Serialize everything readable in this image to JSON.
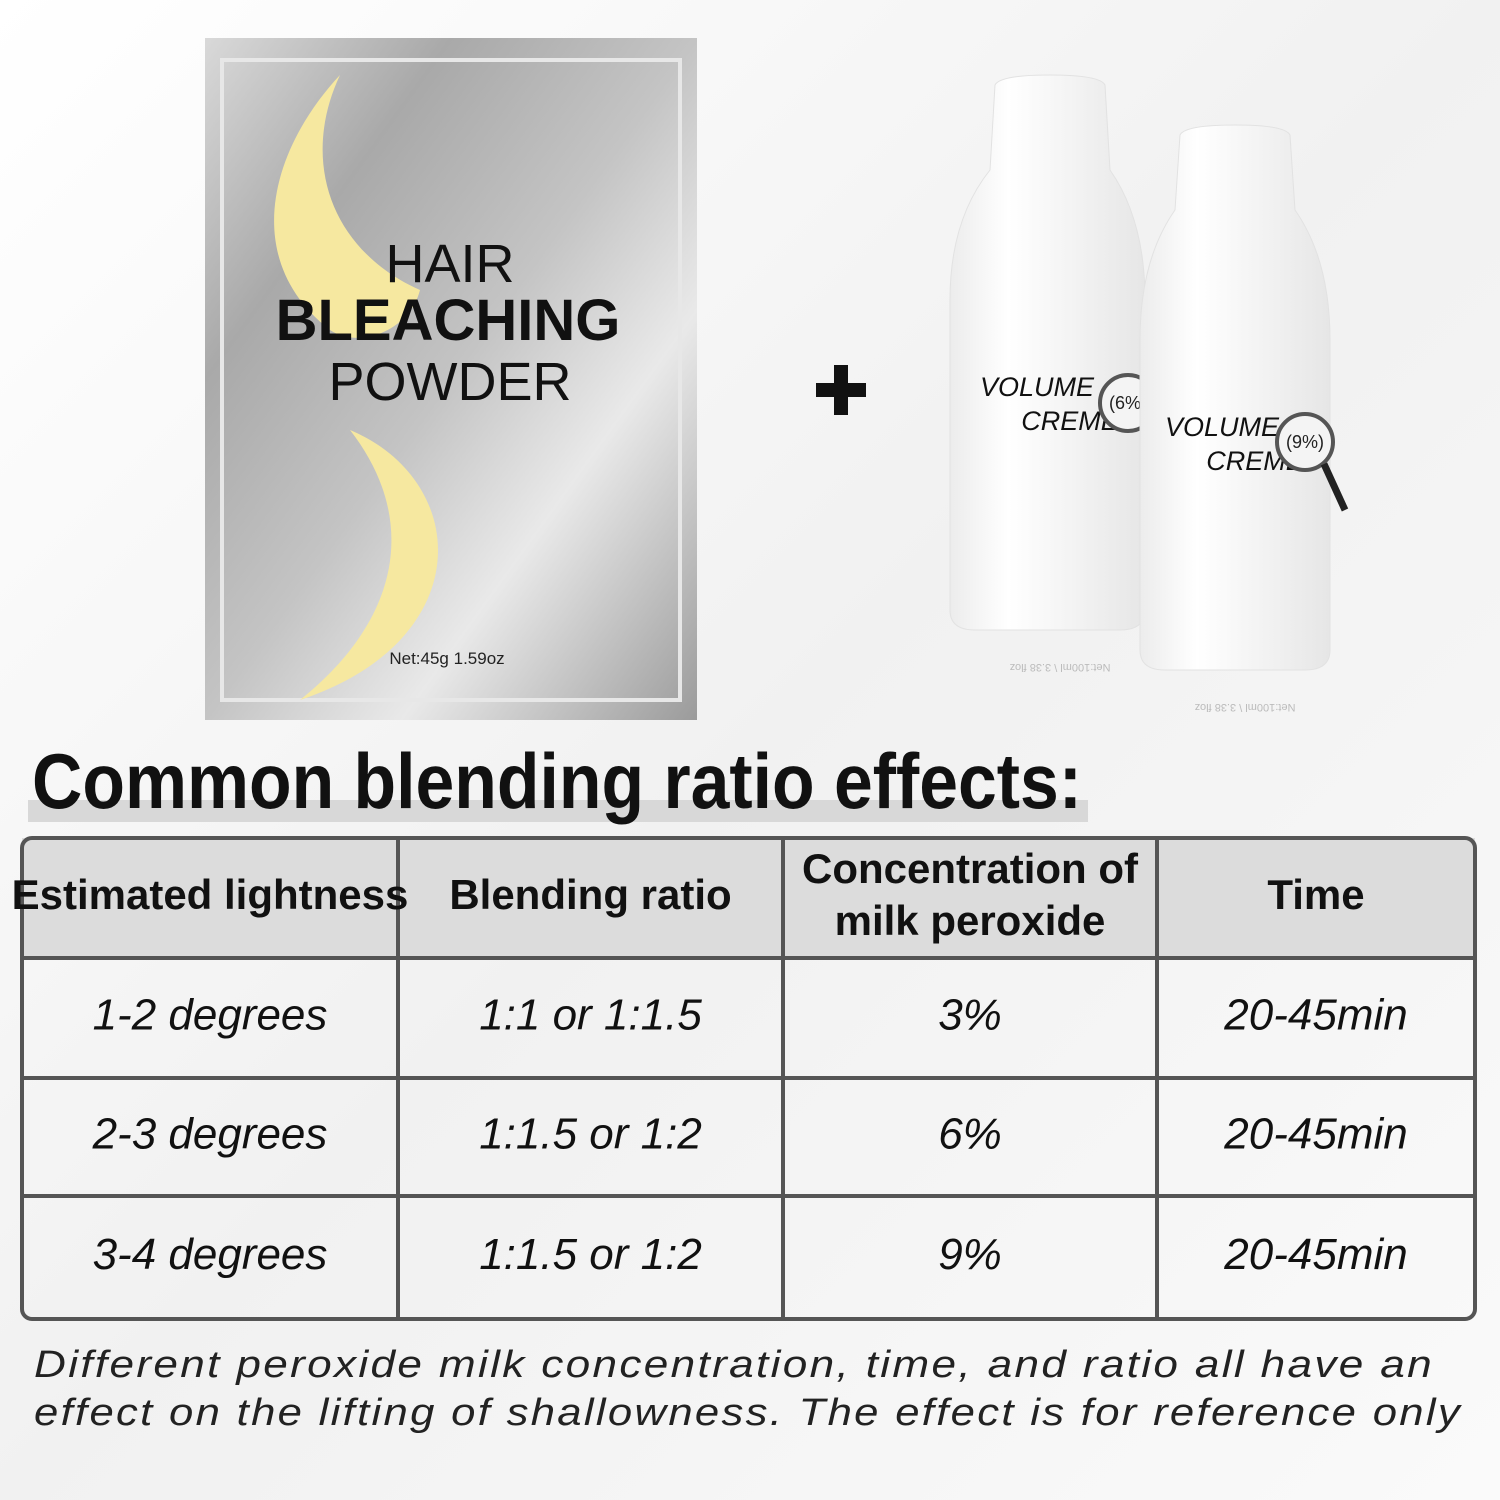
{
  "packet": {
    "line1": "HAIR",
    "line2": "BLEACHING",
    "line3": "POWDER",
    "net": "Net:45g 1.59oz"
  },
  "bottles": [
    {
      "line1": "VOLUME",
      "line2": "CREME",
      "badge": "(6%)",
      "net": "Net:100ml \\ 3.38 floz"
    },
    {
      "line1": "VOLUME",
      "line2": "CREME",
      "badge": "(9%)",
      "net": "Net:100ml \\ 3.38 floz"
    }
  ],
  "title": "Common blending ratio effects:",
  "table": {
    "header": [
      "Estimated lightness",
      "Blending ratio",
      [
        "Concentration of",
        "milk peroxide"
      ],
      "Time"
    ],
    "rows": [
      [
        "1-2 degrees",
        "1:1 or 1:1.5",
        "3%",
        "20-45min"
      ],
      [
        "2-3 degrees",
        "1:1.5 or 1:2",
        "6%",
        "20-45min"
      ],
      [
        "3-4 degrees",
        "1:1.5 or 1:2",
        "9%",
        "20-45min"
      ]
    ]
  },
  "footnote": [
    "Different peroxide milk concentration, time, and ratio all have an",
    "effect on the lifting of shallowness. The effect is for reference only"
  ]
}
